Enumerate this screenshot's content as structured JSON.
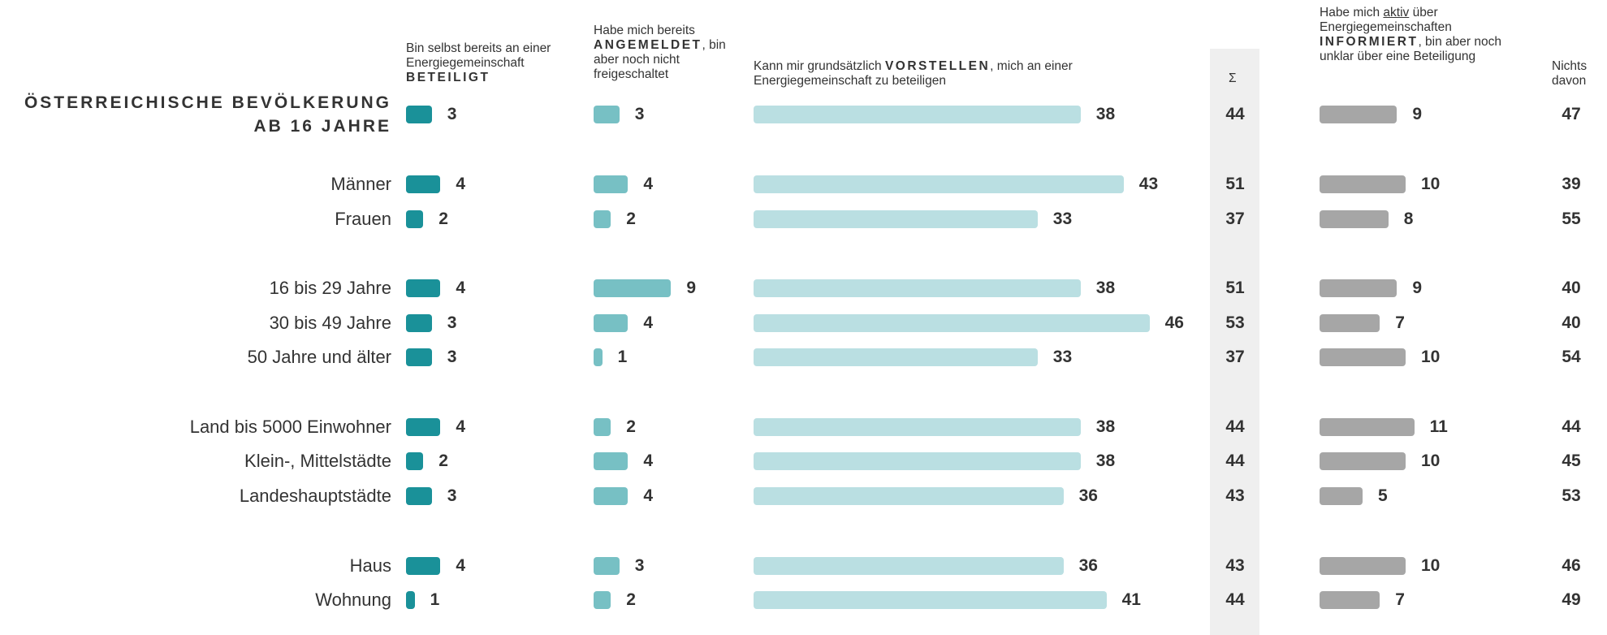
{
  "colors": {
    "beteiligt": "#1a9199",
    "angemeldet": "#77c0c4",
    "vorstellen": "#badfe2",
    "informiert": "#a6a6a6",
    "sum_band": "#efefef",
    "text": "#333333"
  },
  "headers": {
    "beteiligt": {
      "pre": "Bin selbst bereits an einer Energiegemeinschaft",
      "key": "BETEILIGT"
    },
    "angemeldet": {
      "pre": "Habe mich bereits",
      "key": "ANGEMELDET",
      "post": ", bin aber noch nicht freigeschaltet"
    },
    "vorstellen": {
      "pre": "Kann mir grundsätzlich ",
      "key": "VORSTELLEN",
      "post": ", mich an einer Energiegemeinschaft zu beteiligen"
    },
    "sum": "Σ",
    "informiert": {
      "pre": "Habe mich ",
      "underlined": "aktiv",
      "mid": " über Energiegemeinschaften",
      "key": "INFORMIERT",
      "post": ", bin aber noch unklar über eine Beteiligung"
    },
    "nichts_line1": "Nichts",
    "nichts_line2": "davon"
  },
  "main_label_line1": "ÖSTERREICHISCHE BEVÖLKERUNG",
  "main_label_line2": "AB 16 JAHRE",
  "chart_data": {
    "type": "bar",
    "orientation": "horizontal",
    "categories": [
      "ÖSTERREICHISCHE BEVÖLKERUNG AB 16 JAHRE",
      "Männer",
      "Frauen",
      "16 bis 29 Jahre",
      "30 bis 49 Jahre",
      "50 Jahre und älter",
      "Land bis 5000 Einwohner",
      "Klein-, Mittelstädte",
      "Landeshauptstädte",
      "Haus",
      "Wohnung"
    ],
    "series": [
      {
        "name": "Bin selbst bereits an einer Energiegemeinschaft BETEILIGT",
        "values": [
          3,
          4,
          2,
          4,
          3,
          3,
          4,
          2,
          3,
          4,
          1
        ]
      },
      {
        "name": "Habe mich bereits ANGEMELDET, bin aber noch nicht freigeschaltet",
        "values": [
          3,
          4,
          2,
          9,
          4,
          1,
          2,
          4,
          4,
          3,
          2
        ]
      },
      {
        "name": "Kann mir grundsätzlich VORSTELLEN, mich an einer Energiegemeinschaft zu beteiligen",
        "values": [
          38,
          43,
          33,
          38,
          46,
          33,
          38,
          38,
          36,
          36,
          41
        ]
      },
      {
        "name": "Σ",
        "values": [
          44,
          51,
          37,
          51,
          53,
          37,
          44,
          44,
          43,
          43,
          44
        ]
      },
      {
        "name": "Habe mich aktiv über Energiegemeinschaften INFORMIERT, bin aber noch unklar über eine Beteiligung",
        "values": [
          9,
          10,
          8,
          9,
          7,
          10,
          11,
          10,
          5,
          10,
          7
        ]
      },
      {
        "name": "Nichts davon",
        "values": [
          47,
          39,
          55,
          40,
          40,
          54,
          44,
          45,
          53,
          46,
          49
        ]
      }
    ]
  }
}
